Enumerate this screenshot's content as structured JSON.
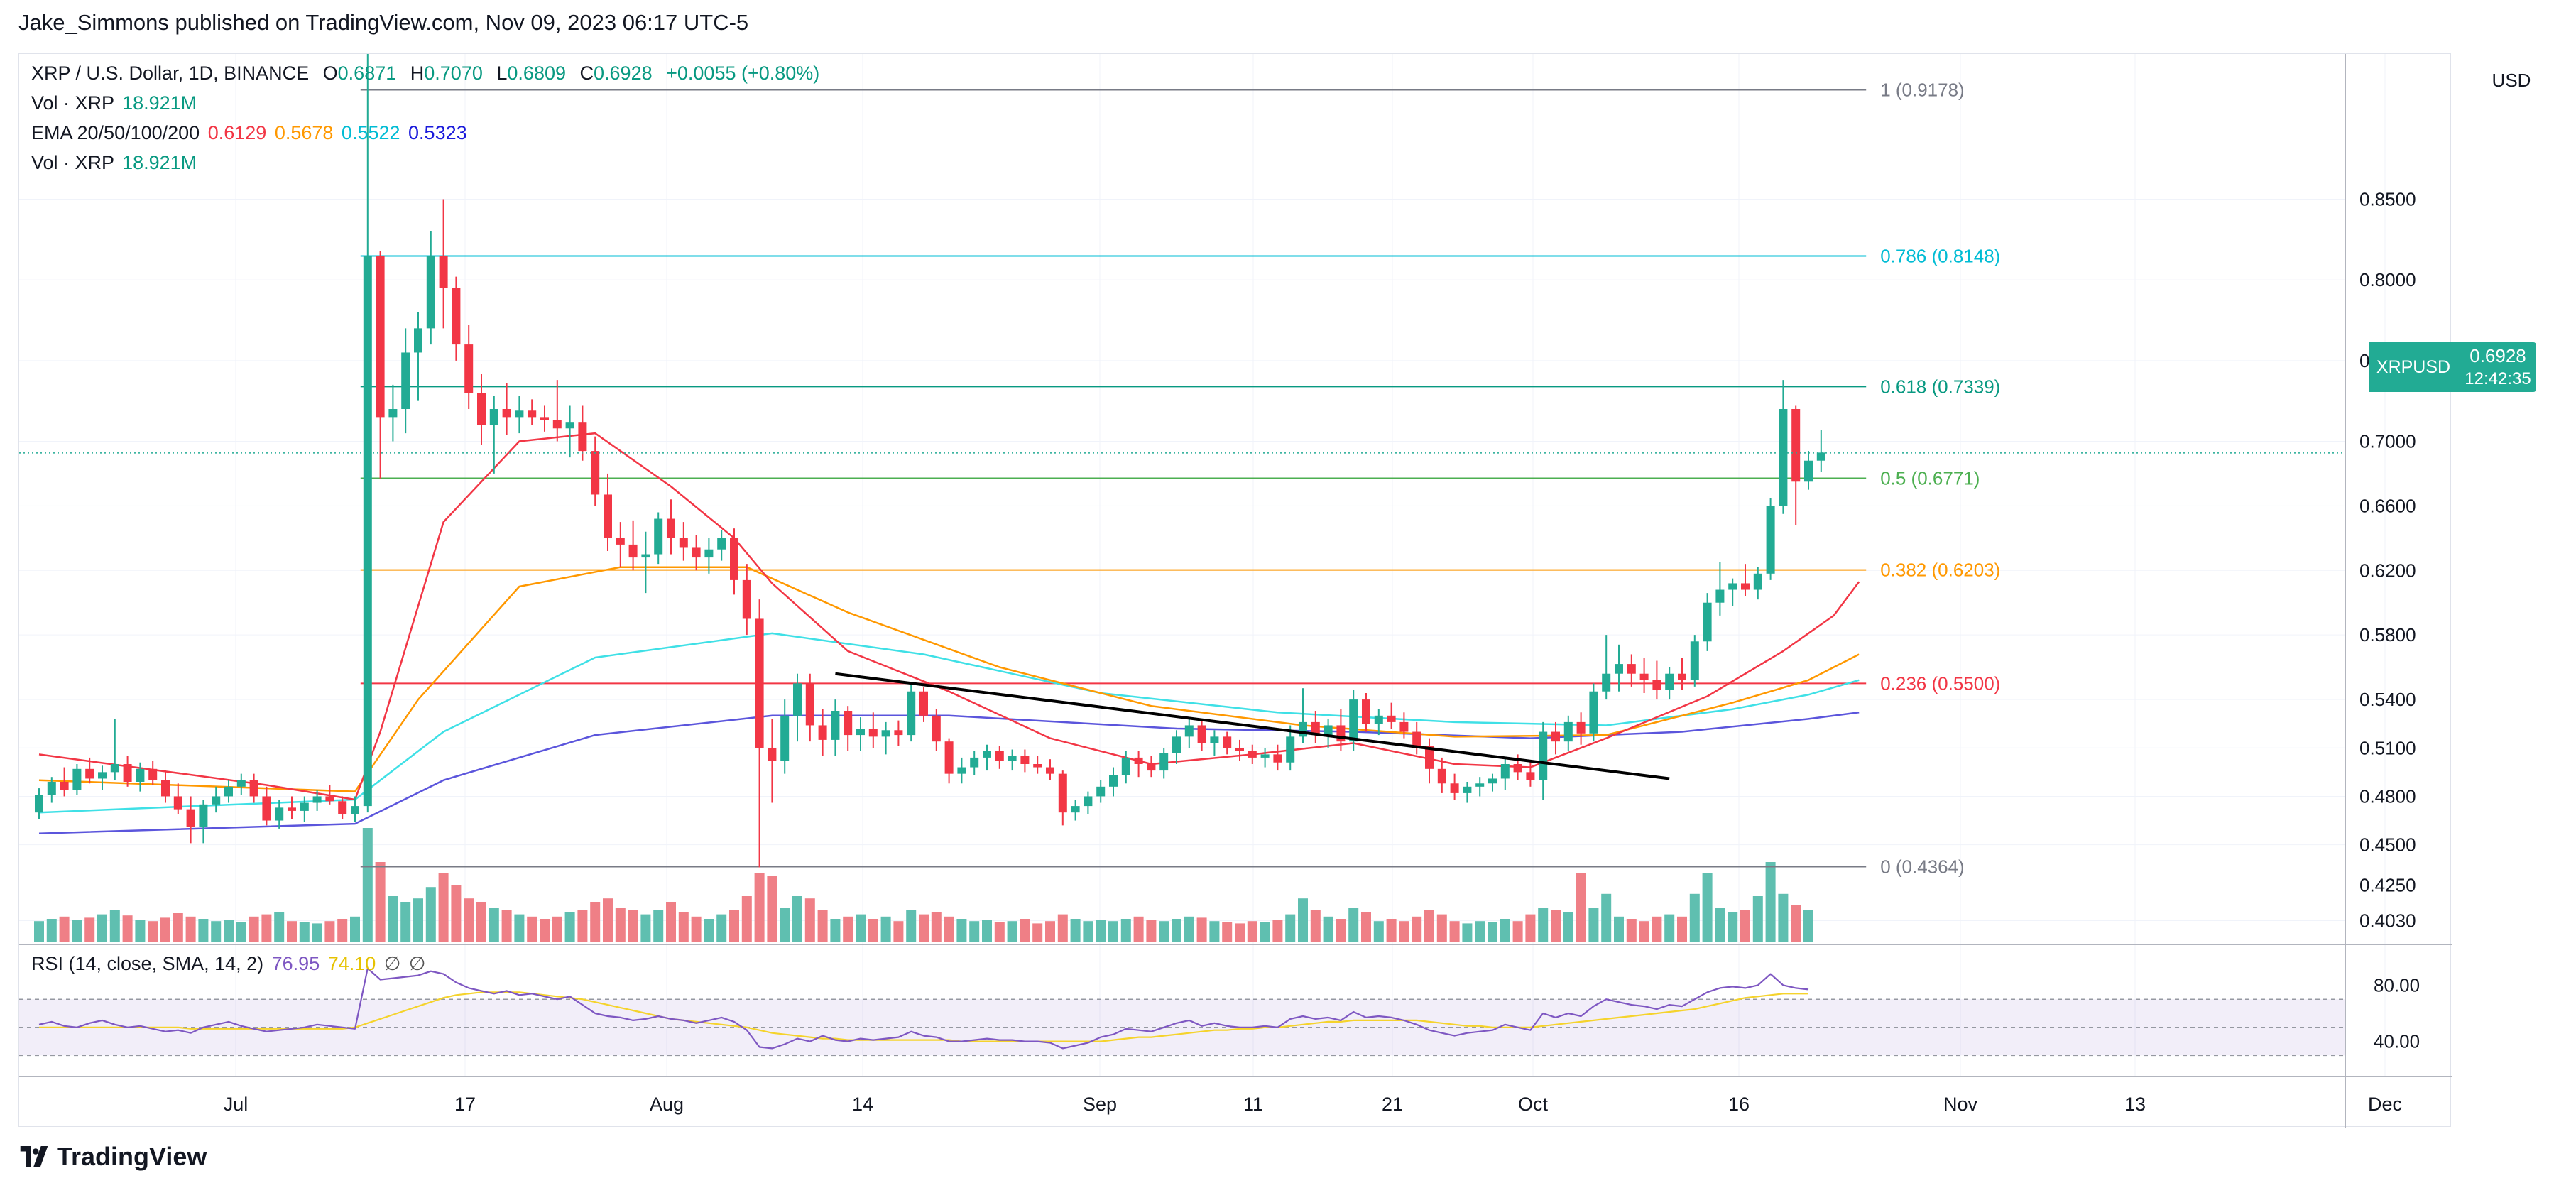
{
  "caption": "Jake_Simmons published on TradingView.com, Nov 09, 2023 06:17 UTC-5",
  "brand": "TradingView",
  "currency": "USD",
  "legend": {
    "symbol_line": "XRP / U.S. Dollar, 1D, BINANCE",
    "ohlc": {
      "O": "0.6871",
      "H": "0.7070",
      "L": "0.6809",
      "C": "0.6928",
      "chg": "+0.0055 (+0.80%)"
    },
    "vol1_label": "Vol · XRP",
    "vol1_value": "18.921M",
    "ema_label": "EMA 20/50/100/200",
    "ema_values": [
      "0.6129",
      "0.5678",
      "0.5522",
      "0.5323"
    ],
    "vol2_label": "Vol · XRP",
    "vol2_value": "18.921M",
    "rsi_label": "RSI (14, close, SMA, 14, 2)",
    "rsi_values": [
      "76.95",
      "74.10"
    ],
    "rsi_extra": [
      "∅",
      "∅"
    ]
  },
  "price_badge": {
    "symbol": "XRPUSD",
    "value": "0.6928",
    "countdown": "12:42:35"
  },
  "colors": {
    "up": "#22ab94",
    "down": "#f23645",
    "vol_up": "#5fbfb0",
    "vol_down": "#ef7f86",
    "ema20": "#f23645",
    "ema50": "#ff9800",
    "ema100": "#3fe0e6",
    "ema200": "#5b55dc",
    "rsi": "#7e57c2",
    "rsi_sma": "#f5d32c",
    "trendline": "#000000"
  },
  "chart_data": {
    "type": "candlestick",
    "price_axis": {
      "min": 0.39,
      "max": 0.94,
      "ticks": [
        "0.8500",
        "0.8000",
        "0.7500",
        "0.7000",
        "0.6600",
        "0.6200",
        "0.5800",
        "0.5400",
        "0.5100",
        "0.4800",
        "0.4500",
        "0.4250",
        "0.4030"
      ]
    },
    "x_axis": {
      "ticks": [
        "Jul",
        "17",
        "Aug",
        "14",
        "Sep",
        "11",
        "21",
        "Oct",
        "16",
        "Nov",
        "13",
        "Dec"
      ]
    },
    "fibonacci": [
      {
        "label": "1 (0.9178)",
        "value": 0.9178,
        "color": "#787b86"
      },
      {
        "label": "0.786 (0.8148)",
        "value": 0.8148,
        "color": "#00bcd4"
      },
      {
        "label": "0.618 (0.7339)",
        "value": 0.7339,
        "color": "#089981"
      },
      {
        "label": "0.5 (0.6771)",
        "value": 0.6771,
        "color": "#4caf50"
      },
      {
        "label": "0.382 (0.6203)",
        "value": 0.6203,
        "color": "#ff9800"
      },
      {
        "label": "0.236 (0.5500)",
        "value": 0.55,
        "color": "#f23645"
      },
      {
        "label": "0 (0.4364)",
        "value": 0.4364,
        "color": "#787b86"
      }
    ],
    "last_price": 0.6928,
    "rsi_axis": {
      "ticks": [
        "80.00",
        "40.00"
      ]
    },
    "candles": [
      [
        0.47,
        0.485,
        0.466,
        0.481
      ],
      [
        0.481,
        0.492,
        0.476,
        0.489
      ],
      [
        0.489,
        0.498,
        0.48,
        0.484
      ],
      [
        0.484,
        0.5,
        0.481,
        0.497
      ],
      [
        0.497,
        0.504,
        0.488,
        0.491
      ],
      [
        0.491,
        0.499,
        0.484,
        0.495
      ],
      [
        0.495,
        0.528,
        0.49,
        0.5
      ],
      [
        0.5,
        0.505,
        0.486,
        0.489
      ],
      [
        0.489,
        0.501,
        0.483,
        0.497
      ],
      [
        0.497,
        0.502,
        0.487,
        0.49
      ],
      [
        0.49,
        0.496,
        0.476,
        0.48
      ],
      [
        0.48,
        0.488,
        0.469,
        0.472
      ],
      [
        0.472,
        0.48,
        0.451,
        0.461
      ],
      [
        0.461,
        0.478,
        0.451,
        0.475
      ],
      [
        0.475,
        0.486,
        0.47,
        0.48
      ],
      [
        0.48,
        0.49,
        0.476,
        0.486
      ],
      [
        0.486,
        0.494,
        0.481,
        0.49
      ],
      [
        0.49,
        0.494,
        0.476,
        0.48
      ],
      [
        0.48,
        0.486,
        0.462,
        0.465
      ],
      [
        0.465,
        0.478,
        0.46,
        0.473
      ],
      [
        0.473,
        0.48,
        0.466,
        0.471
      ],
      [
        0.471,
        0.48,
        0.464,
        0.476
      ],
      [
        0.476,
        0.484,
        0.471,
        0.48
      ],
      [
        0.48,
        0.487,
        0.475,
        0.477
      ],
      [
        0.477,
        0.48,
        0.466,
        0.469
      ],
      [
        0.469,
        0.48,
        0.464,
        0.474
      ],
      [
        0.474,
        0.94,
        0.47,
        0.815
      ],
      [
        0.815,
        0.818,
        0.677,
        0.715
      ],
      [
        0.715,
        0.735,
        0.7,
        0.72
      ],
      [
        0.72,
        0.77,
        0.705,
        0.755
      ],
      [
        0.755,
        0.78,
        0.725,
        0.77
      ],
      [
        0.77,
        0.83,
        0.76,
        0.815
      ],
      [
        0.815,
        0.85,
        0.77,
        0.795
      ],
      [
        0.795,
        0.802,
        0.75,
        0.76
      ],
      [
        0.76,
        0.772,
        0.72,
        0.73
      ],
      [
        0.73,
        0.742,
        0.698,
        0.71
      ],
      [
        0.71,
        0.728,
        0.68,
        0.72
      ],
      [
        0.72,
        0.736,
        0.704,
        0.715
      ],
      [
        0.715,
        0.728,
        0.705,
        0.719
      ],
      [
        0.719,
        0.726,
        0.71,
        0.715
      ],
      [
        0.715,
        0.722,
        0.706,
        0.713
      ],
      [
        0.713,
        0.738,
        0.7,
        0.708
      ],
      [
        0.708,
        0.722,
        0.69,
        0.712
      ],
      [
        0.712,
        0.722,
        0.688,
        0.694
      ],
      [
        0.694,
        0.703,
        0.66,
        0.667
      ],
      [
        0.667,
        0.68,
        0.632,
        0.64
      ],
      [
        0.64,
        0.65,
        0.622,
        0.636
      ],
      [
        0.636,
        0.651,
        0.62,
        0.628
      ],
      [
        0.628,
        0.644,
        0.606,
        0.63
      ],
      [
        0.63,
        0.656,
        0.624,
        0.652
      ],
      [
        0.652,
        0.664,
        0.63,
        0.64
      ],
      [
        0.64,
        0.65,
        0.626,
        0.634
      ],
      [
        0.634,
        0.642,
        0.62,
        0.628
      ],
      [
        0.628,
        0.64,
        0.618,
        0.633
      ],
      [
        0.633,
        0.645,
        0.626,
        0.64
      ],
      [
        0.64,
        0.646,
        0.605,
        0.614
      ],
      [
        0.614,
        0.624,
        0.58,
        0.59
      ],
      [
        0.59,
        0.602,
        0.436,
        0.51
      ],
      [
        0.51,
        0.528,
        0.476,
        0.502
      ],
      [
        0.502,
        0.54,
        0.494,
        0.53
      ],
      [
        0.53,
        0.556,
        0.514,
        0.55
      ],
      [
        0.55,
        0.556,
        0.514,
        0.524
      ],
      [
        0.524,
        0.534,
        0.505,
        0.515
      ],
      [
        0.515,
        0.54,
        0.505,
        0.533
      ],
      [
        0.533,
        0.536,
        0.508,
        0.518
      ],
      [
        0.518,
        0.529,
        0.508,
        0.522
      ],
      [
        0.522,
        0.532,
        0.51,
        0.517
      ],
      [
        0.517,
        0.526,
        0.506,
        0.521
      ],
      [
        0.521,
        0.527,
        0.511,
        0.518
      ],
      [
        0.518,
        0.55,
        0.514,
        0.545
      ],
      [
        0.545,
        0.548,
        0.526,
        0.53
      ],
      [
        0.53,
        0.534,
        0.508,
        0.514
      ],
      [
        0.514,
        0.516,
        0.488,
        0.494
      ],
      [
        0.494,
        0.504,
        0.488,
        0.498
      ],
      [
        0.498,
        0.508,
        0.493,
        0.504
      ],
      [
        0.504,
        0.512,
        0.496,
        0.508
      ],
      [
        0.508,
        0.511,
        0.497,
        0.502
      ],
      [
        0.502,
        0.509,
        0.496,
        0.505
      ],
      [
        0.505,
        0.509,
        0.495,
        0.5
      ],
      [
        0.5,
        0.505,
        0.494,
        0.498
      ],
      [
        0.498,
        0.503,
        0.49,
        0.494
      ],
      [
        0.494,
        0.496,
        0.462,
        0.47
      ],
      [
        0.47,
        0.478,
        0.465,
        0.474
      ],
      [
        0.474,
        0.483,
        0.469,
        0.48
      ],
      [
        0.48,
        0.49,
        0.476,
        0.486
      ],
      [
        0.486,
        0.498,
        0.48,
        0.493
      ],
      [
        0.493,
        0.508,
        0.488,
        0.504
      ],
      [
        0.504,
        0.508,
        0.492,
        0.5
      ],
      [
        0.5,
        0.505,
        0.492,
        0.496
      ],
      [
        0.496,
        0.51,
        0.491,
        0.507
      ],
      [
        0.507,
        0.521,
        0.5,
        0.517
      ],
      [
        0.517,
        0.528,
        0.51,
        0.524
      ],
      [
        0.524,
        0.528,
        0.508,
        0.513
      ],
      [
        0.513,
        0.521,
        0.505,
        0.517
      ],
      [
        0.517,
        0.52,
        0.506,
        0.51
      ],
      [
        0.51,
        0.515,
        0.502,
        0.508
      ],
      [
        0.508,
        0.512,
        0.5,
        0.504
      ],
      [
        0.504,
        0.51,
        0.498,
        0.506
      ],
      [
        0.506,
        0.512,
        0.496,
        0.501
      ],
      [
        0.501,
        0.524,
        0.496,
        0.517
      ],
      [
        0.517,
        0.547,
        0.513,
        0.526
      ],
      [
        0.526,
        0.533,
        0.513,
        0.518
      ],
      [
        0.518,
        0.528,
        0.51,
        0.524
      ],
      [
        0.524,
        0.534,
        0.508,
        0.514
      ],
      [
        0.514,
        0.546,
        0.508,
        0.54
      ],
      [
        0.54,
        0.544,
        0.52,
        0.525
      ],
      [
        0.525,
        0.534,
        0.518,
        0.53
      ],
      [
        0.53,
        0.538,
        0.522,
        0.526
      ],
      [
        0.526,
        0.532,
        0.516,
        0.52
      ],
      [
        0.52,
        0.526,
        0.506,
        0.511
      ],
      [
        0.511,
        0.516,
        0.488,
        0.497
      ],
      [
        0.497,
        0.504,
        0.482,
        0.488
      ],
      [
        0.488,
        0.494,
        0.478,
        0.482
      ],
      [
        0.482,
        0.489,
        0.476,
        0.486
      ],
      [
        0.486,
        0.492,
        0.48,
        0.488
      ],
      [
        0.488,
        0.494,
        0.483,
        0.491
      ],
      [
        0.491,
        0.503,
        0.484,
        0.5
      ],
      [
        0.5,
        0.506,
        0.49,
        0.495
      ],
      [
        0.495,
        0.502,
        0.486,
        0.49
      ],
      [
        0.49,
        0.526,
        0.478,
        0.52
      ],
      [
        0.52,
        0.526,
        0.506,
        0.514
      ],
      [
        0.514,
        0.53,
        0.508,
        0.526
      ],
      [
        0.526,
        0.532,
        0.512,
        0.519
      ],
      [
        0.519,
        0.55,
        0.514,
        0.545
      ],
      [
        0.545,
        0.58,
        0.54,
        0.556
      ],
      [
        0.556,
        0.574,
        0.545,
        0.562
      ],
      [
        0.562,
        0.568,
        0.548,
        0.556
      ],
      [
        0.556,
        0.566,
        0.544,
        0.552
      ],
      [
        0.552,
        0.564,
        0.54,
        0.546
      ],
      [
        0.546,
        0.56,
        0.54,
        0.556
      ],
      [
        0.556,
        0.566,
        0.546,
        0.552
      ],
      [
        0.552,
        0.58,
        0.548,
        0.576
      ],
      [
        0.576,
        0.606,
        0.57,
        0.6
      ],
      [
        0.6,
        0.625,
        0.592,
        0.608
      ],
      [
        0.608,
        0.615,
        0.598,
        0.612
      ],
      [
        0.612,
        0.624,
        0.604,
        0.608
      ],
      [
        0.608,
        0.622,
        0.602,
        0.618
      ],
      [
        0.618,
        0.665,
        0.614,
        0.66
      ],
      [
        0.66,
        0.738,
        0.655,
        0.72
      ],
      [
        0.72,
        0.722,
        0.648,
        0.675
      ],
      [
        0.675,
        0.694,
        0.67,
        0.688
      ],
      [
        0.688,
        0.707,
        0.681,
        0.693
      ]
    ],
    "volume_max": 100,
    "volumes": [
      18,
      20,
      22,
      19,
      21,
      24,
      28,
      23,
      19,
      18,
      21,
      25,
      22,
      20,
      18,
      19,
      17,
      22,
      24,
      26,
      18,
      17,
      16,
      18,
      20,
      22,
      100,
      70,
      40,
      35,
      38,
      48,
      60,
      50,
      38,
      35,
      30,
      28,
      24,
      22,
      20,
      22,
      26,
      28,
      35,
      38,
      30,
      28,
      24,
      28,
      35,
      26,
      22,
      20,
      24,
      28,
      40,
      60,
      58,
      30,
      40,
      38,
      28,
      20,
      22,
      24,
      20,
      22,
      18,
      28,
      24,
      26,
      22,
      20,
      18,
      19,
      17,
      18,
      20,
      16,
      18,
      24,
      20,
      18,
      19,
      18,
      20,
      22,
      19,
      18,
      20,
      22,
      21,
      18,
      17,
      16,
      18,
      17,
      19,
      24,
      38,
      28,
      22,
      20,
      30,
      26,
      18,
      20,
      18,
      22,
      28,
      24,
      18,
      16,
      18,
      17,
      20,
      18,
      24,
      30,
      28,
      26,
      60,
      30,
      42,
      22,
      20,
      18,
      22,
      24,
      22,
      42,
      60,
      30,
      26,
      28,
      40,
      70,
      42,
      32,
      28
    ]
  },
  "ema": {
    "ema20": [
      [
        0,
        0.506
      ],
      [
        18,
        0.487
      ],
      [
        25,
        0.478
      ],
      [
        27,
        0.52
      ],
      [
        32,
        0.65
      ],
      [
        38,
        0.7
      ],
      [
        44,
        0.705
      ],
      [
        50,
        0.672
      ],
      [
        55,
        0.64
      ],
      [
        58,
        0.612
      ],
      [
        64,
        0.57
      ],
      [
        72,
        0.545
      ],
      [
        80,
        0.516
      ],
      [
        88,
        0.5
      ],
      [
        96,
        0.506
      ],
      [
        104,
        0.513
      ],
      [
        112,
        0.5
      ],
      [
        118,
        0.498
      ],
      [
        124,
        0.516
      ],
      [
        132,
        0.542
      ],
      [
        138,
        0.57
      ],
      [
        142,
        0.592
      ],
      [
        144,
        0.613
      ]
    ],
    "ema50": [
      [
        0,
        0.49
      ],
      [
        25,
        0.483
      ],
      [
        30,
        0.54
      ],
      [
        38,
        0.61
      ],
      [
        46,
        0.622
      ],
      [
        56,
        0.622
      ],
      [
        64,
        0.594
      ],
      [
        76,
        0.56
      ],
      [
        88,
        0.536
      ],
      [
        100,
        0.524
      ],
      [
        112,
        0.517
      ],
      [
        124,
        0.518
      ],
      [
        134,
        0.538
      ],
      [
        140,
        0.552
      ],
      [
        144,
        0.568
      ]
    ],
    "ema100": [
      [
        0,
        0.47
      ],
      [
        25,
        0.478
      ],
      [
        32,
        0.52
      ],
      [
        44,
        0.566
      ],
      [
        58,
        0.581
      ],
      [
        70,
        0.568
      ],
      [
        84,
        0.544
      ],
      [
        98,
        0.532
      ],
      [
        112,
        0.526
      ],
      [
        124,
        0.524
      ],
      [
        134,
        0.534
      ],
      [
        140,
        0.543
      ],
      [
        144,
        0.552
      ]
    ],
    "ema200": [
      [
        0,
        0.457
      ],
      [
        25,
        0.463
      ],
      [
        32,
        0.49
      ],
      [
        44,
        0.518
      ],
      [
        58,
        0.53
      ],
      [
        72,
        0.53
      ],
      [
        90,
        0.522
      ],
      [
        104,
        0.52
      ],
      [
        118,
        0.516
      ],
      [
        130,
        0.52
      ],
      [
        140,
        0.528
      ],
      [
        144,
        0.532
      ]
    ]
  },
  "trendline": {
    "from": [
      63,
      0.556
    ],
    "to": [
      129,
      0.491
    ]
  },
  "rsi": [
    52,
    54,
    51,
    50,
    53,
    55,
    52,
    50,
    51,
    49,
    47,
    48,
    46,
    50,
    52,
    54,
    51,
    49,
    47,
    48,
    49,
    50,
    52,
    51,
    50,
    49,
    92,
    84,
    85,
    86,
    87,
    90,
    88,
    82,
    78,
    76,
    74,
    76,
    73,
    74,
    72,
    70,
    72,
    66,
    60,
    58,
    57,
    55,
    56,
    58,
    56,
    55,
    53,
    55,
    57,
    54,
    48,
    36,
    35,
    38,
    42,
    40,
    44,
    41,
    40,
    42,
    41,
    42,
    43,
    47,
    44,
    43,
    40,
    40,
    41,
    42,
    41,
    41,
    40,
    40,
    39,
    35,
    37,
    39,
    43,
    45,
    49,
    48,
    47,
    50,
    53,
    55,
    51,
    53,
    51,
    50,
    50,
    51,
    50,
    56,
    58,
    56,
    57,
    55,
    61,
    57,
    58,
    57,
    55,
    52,
    48,
    46,
    44,
    46,
    47,
    48,
    52,
    50,
    48,
    60,
    57,
    60,
    58,
    65,
    70,
    68,
    66,
    65,
    63,
    66,
    65,
    70,
    75,
    78,
    79,
    78,
    80,
    88,
    80,
    78,
    77
  ],
  "rsi_sma": [
    50,
    50,
    50,
    50,
    50,
    50,
    50,
    50,
    50,
    50,
    50,
    50,
    49,
    49,
    49,
    49,
    49,
    49,
    49,
    49,
    49,
    49,
    49,
    49,
    49,
    50,
    53,
    56,
    59,
    62,
    65,
    68,
    71,
    73,
    74,
    75,
    75,
    75,
    75,
    74,
    73,
    72,
    71,
    70,
    68,
    66,
    64,
    62,
    60,
    58,
    56,
    55,
    54,
    53,
    52,
    51,
    50,
    48,
    46,
    45,
    44,
    43,
    42,
    42,
    41,
    41,
    41,
    41,
    41,
    41,
    41,
    41,
    41,
    40,
    40,
    40,
    40,
    40,
    40,
    40,
    40,
    40,
    40,
    40,
    40,
    41,
    42,
    43,
    43,
    44,
    45,
    46,
    47,
    48,
    48,
    49,
    49,
    50,
    50,
    51,
    52,
    53,
    54,
    54,
    55,
    55,
    55,
    55,
    55,
    55,
    54,
    53,
    52,
    51,
    51,
    50,
    50,
    50,
    50,
    51,
    52,
    53,
    54,
    55,
    56,
    57,
    58,
    59,
    60,
    61,
    62,
    63,
    65,
    67,
    69,
    71,
    72,
    73,
    74,
    74,
    74
  ]
}
